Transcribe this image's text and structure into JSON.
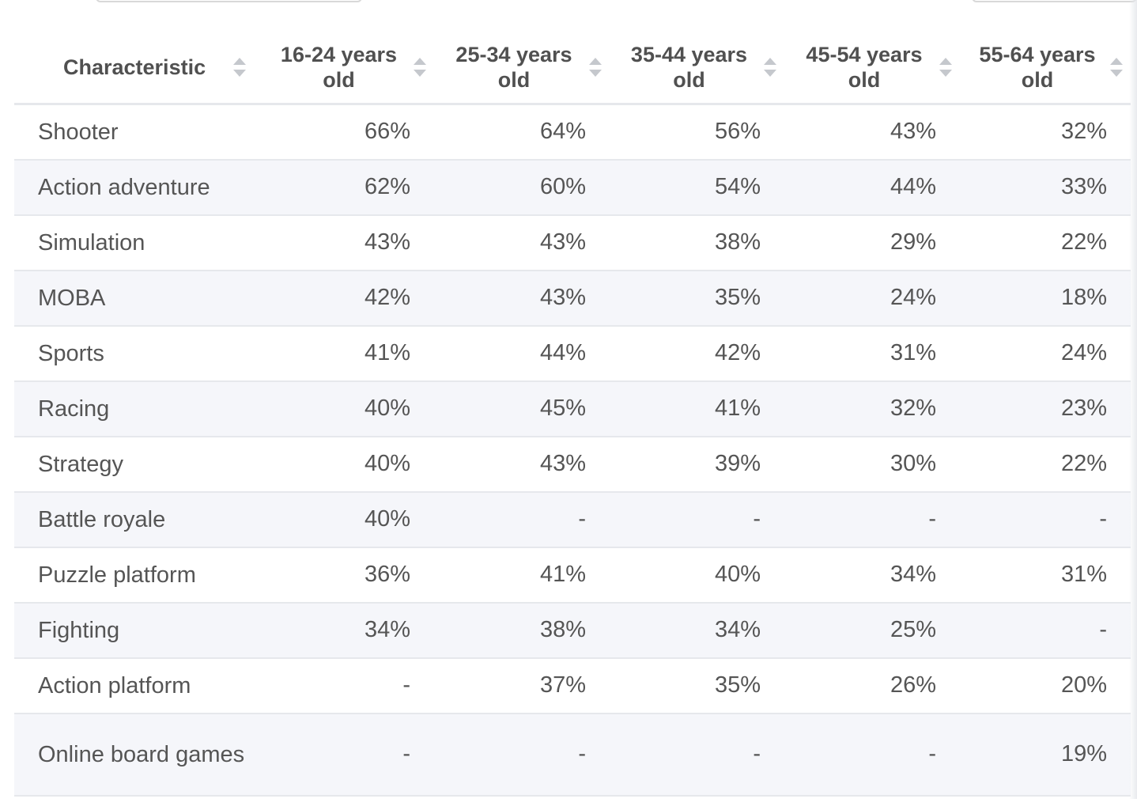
{
  "table": {
    "columns": [
      "Characteristic",
      "16-24 years old",
      "25-34 years old",
      "35-44 years old",
      "45-54 years old",
      "55-64 years old"
    ],
    "rows": [
      {
        "name": "Shooter",
        "values": [
          "66%",
          "64%",
          "56%",
          "43%",
          "32%"
        ]
      },
      {
        "name": "Action adventure",
        "values": [
          "62%",
          "60%",
          "54%",
          "44%",
          "33%"
        ]
      },
      {
        "name": "Simulation",
        "values": [
          "43%",
          "43%",
          "38%",
          "29%",
          "22%"
        ]
      },
      {
        "name": "MOBA",
        "values": [
          "42%",
          "43%",
          "35%",
          "24%",
          "18%"
        ]
      },
      {
        "name": "Sports",
        "values": [
          "41%",
          "44%",
          "42%",
          "31%",
          "24%"
        ]
      },
      {
        "name": "Racing",
        "values": [
          "40%",
          "45%",
          "41%",
          "32%",
          "23%"
        ]
      },
      {
        "name": "Strategy",
        "values": [
          "40%",
          "43%",
          "39%",
          "30%",
          "22%"
        ]
      },
      {
        "name": "Battle royale",
        "values": [
          "40%",
          "-",
          "-",
          "-",
          "-"
        ]
      },
      {
        "name": "Puzzle platform",
        "values": [
          "36%",
          "41%",
          "40%",
          "34%",
          "31%"
        ]
      },
      {
        "name": "Fighting",
        "values": [
          "34%",
          "38%",
          "34%",
          "25%",
          "-"
        ]
      },
      {
        "name": "Action platform",
        "values": [
          "-",
          "37%",
          "35%",
          "26%",
          "20%"
        ]
      },
      {
        "name": "Online board games",
        "values": [
          "-",
          "-",
          "-",
          "-",
          "19%"
        ]
      }
    ]
  }
}
